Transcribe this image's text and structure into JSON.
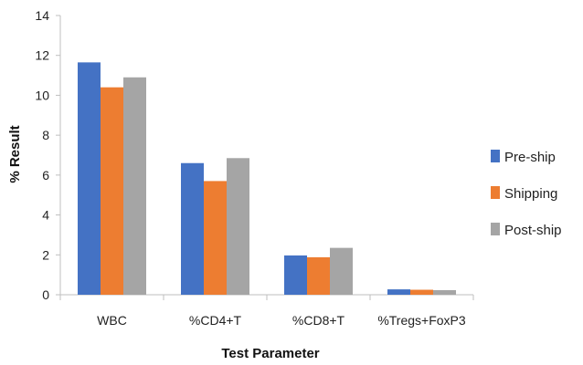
{
  "chart_data": {
    "type": "bar",
    "categories": [
      "WBC",
      "%CD4+T",
      "%CD8+T",
      "%Tregs+FoxP3"
    ],
    "series": [
      {
        "name": "Pre-ship",
        "color": "#4472C4",
        "values": [
          11.65,
          6.6,
          1.97,
          0.27
        ]
      },
      {
        "name": "Shipping",
        "color": "#ED7D31",
        "values": [
          10.4,
          5.7,
          1.88,
          0.25
        ]
      },
      {
        "name": "Post-ship",
        "color": "#A5A5A5",
        "values": [
          10.9,
          6.85,
          2.35,
          0.23
        ]
      }
    ],
    "xlabel": "Test Parameter",
    "ylabel": "% Result",
    "ylim": [
      0,
      14
    ],
    "yticks": [
      "0",
      "2",
      "4",
      "6",
      "8",
      "10",
      "12",
      "14"
    ],
    "grid": false,
    "legend_position": "right"
  }
}
